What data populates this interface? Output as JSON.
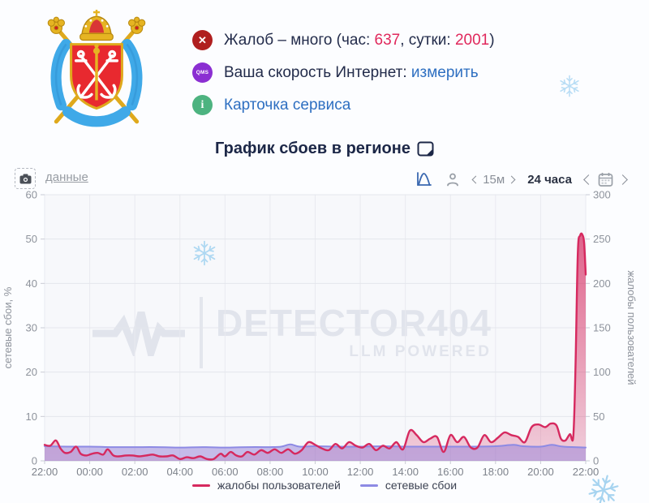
{
  "header": {
    "line1": {
      "icon": "error-x",
      "pre": "Жалоб – много (час: ",
      "hour": "637",
      "sep": ", сутки: ",
      "day": "2001",
      "post": ")"
    },
    "line2": {
      "badge": "QMS",
      "text": "Ваша скорость Интернет: ",
      "link": "измерить"
    },
    "line3": {
      "icon": "info-i",
      "link": "Карточка сервиса"
    }
  },
  "chart_header": {
    "title": "График сбоев в регионе"
  },
  "toolbar": {
    "data_link": "данные",
    "interval": "15м",
    "range": "24 часа"
  },
  "watermark": {
    "brand": "DETECTOR404",
    "tagline": "LLM POWERED"
  },
  "colors": {
    "accent_pink": "#d6295f",
    "accent_purple": "#8f8ce6",
    "link_blue": "#2e6fc1",
    "number_red": "#e0285c",
    "status_error": "#b01f1f",
    "status_qms": "#8b2fd2",
    "status_info": "#4db380",
    "snowflake": "#aed8f2",
    "watermark_gray": "#e1e4ec"
  },
  "chart_data": {
    "type": "line",
    "title": "График сбоев в регионе",
    "x_range": [
      0,
      24
    ],
    "x_ticks": [
      "22:00",
      "00:00",
      "02:00",
      "04:00",
      "06:00",
      "08:00",
      "10:00",
      "12:00",
      "14:00",
      "16:00",
      "18:00",
      "20:00",
      "22:00"
    ],
    "y_left": {
      "label": "сетевые сбои, %",
      "min": 0,
      "max": 60,
      "ticks": [
        0,
        10,
        20,
        30,
        40,
        50,
        60
      ]
    },
    "y_right": {
      "label": "жалобы пользователей",
      "min": 0,
      "max": 300,
      "ticks": [
        0,
        50,
        100,
        150,
        200,
        250,
        300
      ]
    },
    "grid": true,
    "legend_position": "bottom",
    "series": [
      {
        "name": "жалобы пользователей",
        "axis": "right",
        "color": "#d6295f",
        "fill": "url(#gradPink)",
        "line_width": 2.4,
        "points": [
          [
            0,
            18
          ],
          [
            0.25,
            17
          ],
          [
            0.5,
            23
          ],
          [
            0.7,
            14
          ],
          [
            0.9,
            9
          ],
          [
            1.15,
            10
          ],
          [
            1.4,
            16
          ],
          [
            1.6,
            8
          ],
          [
            1.85,
            6
          ],
          [
            2.1,
            8
          ],
          [
            2.35,
            9
          ],
          [
            2.6,
            7
          ],
          [
            2.8,
            13
          ],
          [
            3.05,
            6
          ],
          [
            3.3,
            5
          ],
          [
            3.6,
            6
          ],
          [
            3.9,
            6
          ],
          [
            4.2,
            5
          ],
          [
            4.5,
            6
          ],
          [
            4.8,
            7
          ],
          [
            5.1,
            5
          ],
          [
            5.4,
            5
          ],
          [
            5.7,
            6
          ],
          [
            6,
            2
          ],
          [
            6.3,
            4
          ],
          [
            6.6,
            3
          ],
          [
            6.9,
            5
          ],
          [
            7.2,
            2
          ],
          [
            7.5,
            2
          ],
          [
            7.8,
            8
          ],
          [
            8,
            5
          ],
          [
            8.25,
            10
          ],
          [
            8.5,
            6
          ],
          [
            8.75,
            5
          ],
          [
            9,
            10
          ],
          [
            9.3,
            7
          ],
          [
            9.6,
            12
          ],
          [
            9.9,
            9
          ],
          [
            10.2,
            13
          ],
          [
            10.5,
            9
          ],
          [
            10.8,
            13
          ],
          [
            11.1,
            8
          ],
          [
            11.4,
            12
          ],
          [
            11.7,
            21
          ],
          [
            12,
            18
          ],
          [
            12.3,
            14
          ],
          [
            12.6,
            12
          ],
          [
            12.9,
            19
          ],
          [
            13.2,
            14
          ],
          [
            13.5,
            21
          ],
          [
            13.8,
            17
          ],
          [
            14.1,
            15
          ],
          [
            14.4,
            19
          ],
          [
            14.7,
            12
          ],
          [
            15,
            17
          ],
          [
            15.3,
            14
          ],
          [
            15.6,
            21
          ],
          [
            15.9,
            13
          ],
          [
            16.2,
            34
          ],
          [
            16.5,
            29
          ],
          [
            16.8,
            21
          ],
          [
            17.1,
            25
          ],
          [
            17.4,
            27
          ],
          [
            17.7,
            10
          ],
          [
            18,
            29
          ],
          [
            18.3,
            21
          ],
          [
            18.6,
            27
          ],
          [
            18.9,
            15
          ],
          [
            19.2,
            15
          ],
          [
            19.5,
            29
          ],
          [
            19.8,
            21
          ],
          [
            20.1,
            26
          ],
          [
            20.4,
            32
          ],
          [
            20.7,
            29
          ],
          [
            21,
            27
          ],
          [
            21.3,
            21
          ],
          [
            21.6,
            38
          ],
          [
            21.9,
            41
          ],
          [
            22.2,
            38
          ],
          [
            22.45,
            42
          ],
          [
            22.7,
            40
          ],
          [
            22.9,
            25
          ],
          [
            23.1,
            23
          ],
          [
            23.3,
            30
          ],
          [
            23.45,
            28
          ],
          [
            23.55,
            110
          ],
          [
            23.65,
            235
          ],
          [
            23.75,
            254
          ],
          [
            23.85,
            255
          ],
          [
            23.93,
            245
          ],
          [
            24,
            210
          ]
        ]
      },
      {
        "name": "сетевые сбои",
        "axis": "left",
        "color": "#8d8ae4",
        "fill": "rgba(148,126,216,0.5)",
        "line_width": 2,
        "points": [
          [
            0,
            3.3
          ],
          [
            1,
            3.2
          ],
          [
            2,
            3.2
          ],
          [
            3,
            3.1
          ],
          [
            4,
            3.1
          ],
          [
            5,
            3.1
          ],
          [
            6,
            3.0
          ],
          [
            7,
            3.1
          ],
          [
            8,
            3.0
          ],
          [
            9,
            3.1
          ],
          [
            10,
            3.1
          ],
          [
            10.5,
            3.2
          ],
          [
            10.9,
            3.7
          ],
          [
            11.3,
            3.2
          ],
          [
            12,
            3.3
          ],
          [
            13,
            3.2
          ],
          [
            14,
            3.2
          ],
          [
            15,
            3.3
          ],
          [
            16,
            3.2
          ],
          [
            17,
            3.2
          ],
          [
            18,
            3.2
          ],
          [
            19,
            3.2
          ],
          [
            20,
            3.3
          ],
          [
            20.8,
            3.6
          ],
          [
            21.2,
            3.3
          ],
          [
            22,
            3.2
          ],
          [
            22.5,
            3.6
          ],
          [
            23,
            3.2
          ],
          [
            24,
            3.0
          ]
        ]
      }
    ]
  }
}
